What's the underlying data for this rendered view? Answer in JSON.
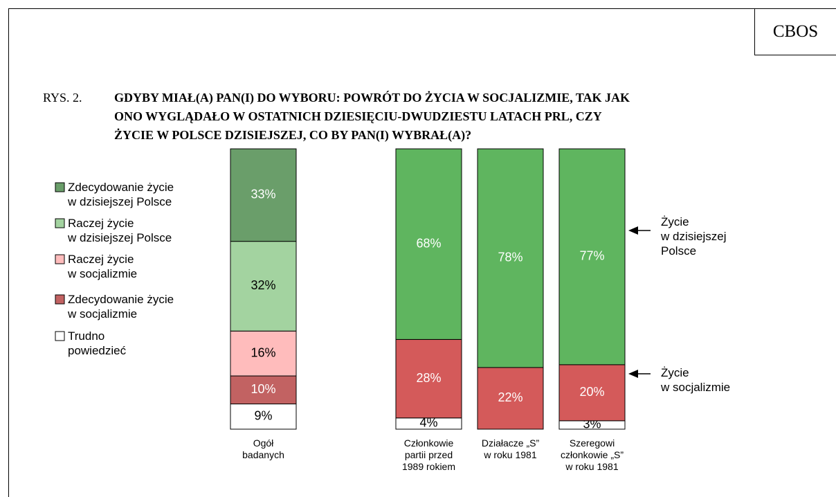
{
  "header": {
    "logo": "CBOS",
    "label": "RYS. 2.",
    "title": [
      "GDYBY MIAŁ(A) PAN(I) DO WYBORU: POWRÓT DO ŻYCIA W SOCJALIZMIE, TAK JAK",
      "ONO WYGLĄDAŁO W OSTATNICH DZIESIĘCIU-DWUDZIESTU LATACH PRL, CZY",
      "ŻYCIE W POLSCE DZISIEJSZEJ, CO BY PAN(I) WYBRAŁ(A)?"
    ]
  },
  "chart_data": [
    {
      "type": "bar",
      "stacked": true,
      "legend": "left",
      "categories": [
        "Ogół\nbadanych"
      ],
      "series": [
        {
          "name": "Zdecydowanie życie\nw dzisiejszej Polsce",
          "color": "#6a9e6a",
          "label_color": "#ffffff",
          "values": [
            33
          ],
          "value_labels": [
            "33%"
          ]
        },
        {
          "name": "Raczej życie\nw dzisiejszej Polsce",
          "color": "#a3d3a0",
          "label_color": "#000000",
          "values": [
            32
          ],
          "value_labels": [
            "32%"
          ]
        },
        {
          "name": "Raczej życie\nw socjalizmie",
          "color": "#ffbcbc",
          "label_color": "#000000",
          "values": [
            16
          ],
          "value_labels": [
            "16%"
          ]
        },
        {
          "name": "Zdecydowanie życie\nw socjalizmie",
          "color": "#c26262",
          "label_color": "#ffffff",
          "values": [
            10
          ],
          "value_labels": [
            "10%"
          ]
        },
        {
          "name": "Trudno\npowiedzieć",
          "color": "#ffffff",
          "label_color": "#000000",
          "values": [
            9
          ],
          "value_labels": [
            "9%"
          ]
        }
      ]
    },
    {
      "type": "bar",
      "stacked": true,
      "legend": "right",
      "categories": [
        "Członkowie\npartii przed\n1989 rokiem",
        "Działacze „S”\nw roku 1981",
        "Szeregowi\nczłonkowie „S”\nw roku 1981"
      ],
      "series": [
        {
          "name": "Życie\nw dzisiejszej\nPolsce",
          "color": "#5fb55f",
          "label_color": "#ffffff",
          "values": [
            68,
            78,
            77
          ],
          "value_labels": [
            "68%",
            "78%",
            "77%"
          ]
        },
        {
          "name": "Życie\nw socjalizmie",
          "color": "#d45a5a",
          "label_color": "#ffffff",
          "values": [
            28,
            22,
            20
          ],
          "value_labels": [
            "28%",
            "22%",
            "20%"
          ]
        },
        {
          "color": "#ffffff",
          "label_color": "#000000",
          "values": [
            4,
            null,
            3
          ],
          "value_labels": [
            "4%",
            null,
            "3%"
          ]
        }
      ]
    }
  ]
}
